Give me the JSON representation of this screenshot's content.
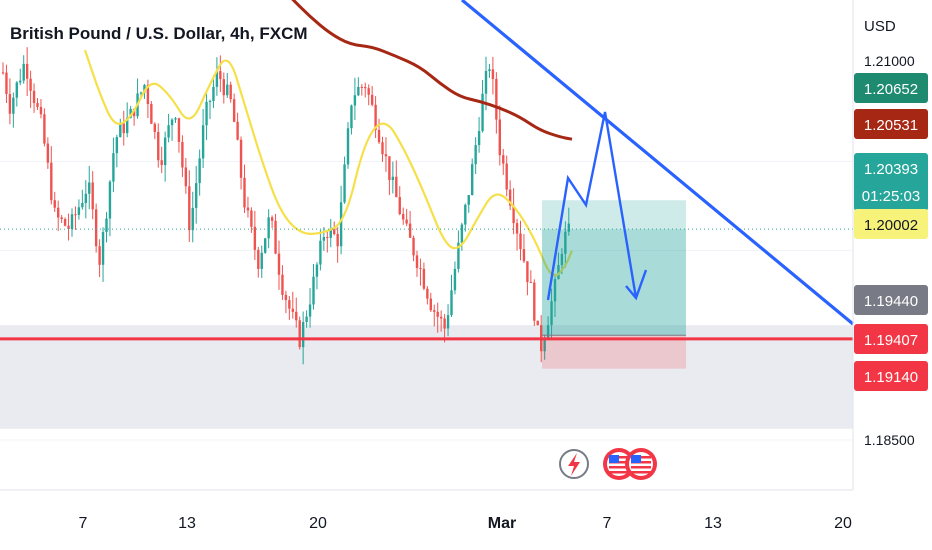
{
  "chart_data": {
    "type": "candlestick",
    "title": "British Pound / U.S. Dollar, 4h, FXCM",
    "currency": "USD",
    "y_range": [
      1.1805,
      1.2245
    ],
    "x_ticks": [
      "7",
      "13",
      "20",
      "Mar",
      "7",
      "13",
      "20"
    ],
    "y_ticks": [
      "1.21000",
      "1.18500"
    ],
    "price_labels": [
      {
        "value": "1.20652",
        "color": "#1e8a70",
        "text_color": "#ffffff"
      },
      {
        "value": "1.20531",
        "color": "#a52714",
        "text_color": "#ffffff"
      },
      {
        "value": "1.20393",
        "color": "#26a69a",
        "text_color": "#ffffff",
        "sub": "01:25:03"
      },
      {
        "value": "1.20002",
        "color": "#f6f27a",
        "text_color": "#131722"
      },
      {
        "value": "1.19440",
        "color": "#787b86",
        "text_color": "#ffffff"
      },
      {
        "value": "1.19407",
        "color": "#f23645",
        "text_color": "#ffffff"
      },
      {
        "value": "1.19140",
        "color": "#f23645",
        "text_color": "#ffffff"
      }
    ],
    "levels": {
      "current_price": 1.20393,
      "support_line": 1.19407,
      "entry": 1.1944,
      "target": 1.20652,
      "stop": 1.1914,
      "zone_top": 1.1953,
      "zone_bottom": 1.186
    },
    "indicators": [
      {
        "name": "red moving average",
        "color": "#a52714"
      },
      {
        "name": "yellow moving average",
        "color": "#f5e04a"
      }
    ],
    "colors": {
      "up": "#26a69a",
      "down": "#ef5350",
      "trendline": "#2962ff",
      "support": "#f23645"
    }
  },
  "events": {
    "icons": [
      "lightning-event-icon",
      "us-flag-event-icon",
      "us-flag-event-icon"
    ]
  }
}
